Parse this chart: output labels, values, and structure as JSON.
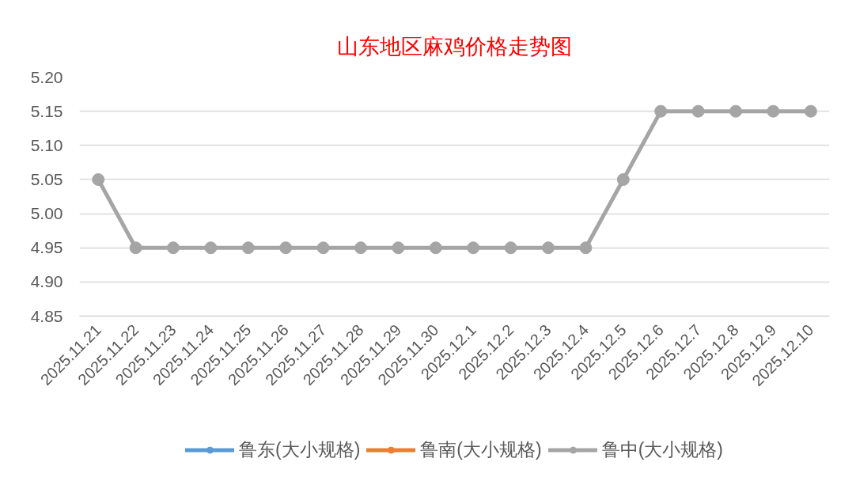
{
  "chart_data": {
    "type": "line",
    "title": "山东地区麻鸡价格走势图",
    "categories": [
      "2025.11.21",
      "2025.11.22",
      "2025.11.23",
      "2025.11.24",
      "2025.11.25",
      "2025.11.26",
      "2025.11.27",
      "2025.11.28",
      "2025.11.29",
      "2025.11.30",
      "2025.12.1",
      "2025.12.2",
      "2025.12.3",
      "2025.12.4",
      "2025.12.5",
      "2025.12.6",
      "2025.12.7",
      "2025.12.8",
      "2025.12.9",
      "2025.12.10"
    ],
    "series": [
      {
        "name": "鲁东(大小规格)",
        "color": "#5b9bd5",
        "values": [
          null,
          null,
          null,
          null,
          null,
          null,
          null,
          null,
          null,
          null,
          null,
          null,
          null,
          null,
          null,
          null,
          null,
          null,
          null,
          null
        ]
      },
      {
        "name": "鲁南(大小规格)",
        "color": "#ed7d31",
        "values": [
          null,
          null,
          null,
          null,
          null,
          null,
          null,
          null,
          null,
          null,
          null,
          null,
          null,
          null,
          null,
          null,
          null,
          null,
          null,
          null
        ]
      },
      {
        "name": "鲁中(大小规格)",
        "color": "#a5a5a5",
        "values": [
          5.05,
          4.95,
          4.95,
          4.95,
          4.95,
          4.95,
          4.95,
          4.95,
          4.95,
          4.95,
          4.95,
          4.95,
          4.95,
          4.95,
          5.05,
          5.15,
          5.15,
          5.15,
          5.15,
          5.15
        ]
      }
    ],
    "ylim": [
      4.85,
      5.2
    ],
    "yticks": [
      {
        "value": 4.85,
        "label": "4.85"
      },
      {
        "value": 4.9,
        "label": "4.90"
      },
      {
        "value": 4.95,
        "label": "4.95"
      },
      {
        "value": 5.0,
        "label": "5.00"
      },
      {
        "value": 5.05,
        "label": "5.05"
      },
      {
        "value": 5.1,
        "label": "5.10"
      },
      {
        "value": 5.15,
        "label": "5.15"
      },
      {
        "value": 5.2,
        "label": "5.20"
      }
    ],
    "grid": "y",
    "legend": "bottom",
    "marker": "circle",
    "line_style": "solid"
  }
}
